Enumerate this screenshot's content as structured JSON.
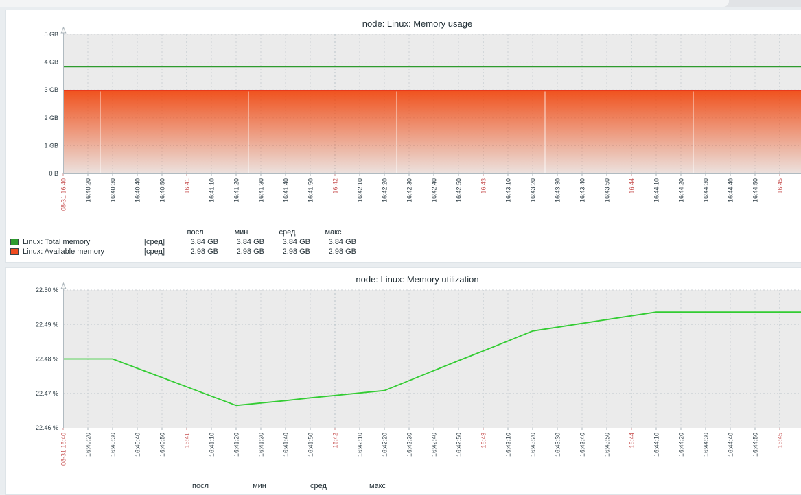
{
  "page": {
    "background": "#e9edf0"
  },
  "legend_stat_headers": [
    "посл",
    "мин",
    "сред",
    "макс"
  ],
  "chart_data": [
    {
      "type": "line+area",
      "title": "node: Linux: Memory usage",
      "ylim": [
        0,
        5
      ],
      "y_unit": "GB",
      "y_ticks": [
        "5 GB",
        "4 GB",
        "3 GB",
        "2 GB",
        "1 GB",
        "0 B"
      ],
      "x_tick_interval_s": 10,
      "grid": true,
      "legend_position": "bottom",
      "x_ticks": [
        {
          "label": "08-31 16:40",
          "red": true
        },
        {
          "label": "16:40:20"
        },
        {
          "label": "16:40:30"
        },
        {
          "label": "16:40:40"
        },
        {
          "label": "16:40:50"
        },
        {
          "label": "16:41",
          "red": true
        },
        {
          "label": "16:41:10"
        },
        {
          "label": "16:41:20"
        },
        {
          "label": "16:41:30"
        },
        {
          "label": "16:41:40"
        },
        {
          "label": "16:41:50"
        },
        {
          "label": "16:42",
          "red": true
        },
        {
          "label": "16:42:10"
        },
        {
          "label": "16:42:20"
        },
        {
          "label": "16:42:30"
        },
        {
          "label": "16:42:40"
        },
        {
          "label": "16:42:50"
        },
        {
          "label": "16:43",
          "red": true
        },
        {
          "label": "16:43:10"
        },
        {
          "label": "16:43:20"
        },
        {
          "label": "16:43:30"
        },
        {
          "label": "16:43:40"
        },
        {
          "label": "16:43:50"
        },
        {
          "label": "16:44",
          "red": true
        },
        {
          "label": "16:44:10"
        },
        {
          "label": "16:44:20"
        },
        {
          "label": "16:44:30"
        },
        {
          "label": "16:44:40"
        },
        {
          "label": "16:44:50"
        },
        {
          "label": "16:45",
          "red": true
        }
      ],
      "series": [
        {
          "name": "Linux: Total memory",
          "type": "line",
          "color": "#2E9B2E",
          "constant_value": 3.84
        },
        {
          "name": "Linux: Available memory",
          "type": "area",
          "color": "#F0470F",
          "line_color": "#E8391C",
          "constant_value": 2.98
        }
      ],
      "legend": {
        "headers": [
          "посл",
          "мин",
          "сред",
          "макс"
        ],
        "rows": [
          {
            "color": "#2E9B2E",
            "label": "Linux: Total memory",
            "func": "[сред]",
            "values": [
              "3.84 GB",
              "3.84 GB",
              "3.84 GB",
              "3.84 GB"
            ]
          },
          {
            "color": "#F04B1F",
            "label": "Linux: Available memory",
            "func": "[сред]",
            "values": [
              "2.98 GB",
              "2.98 GB",
              "2.98 GB",
              "2.98 GB"
            ]
          }
        ]
      }
    },
    {
      "type": "line",
      "title": "node: Linux: Memory utilization",
      "ylim": [
        22.46,
        22.5
      ],
      "y_unit": "%",
      "y_ticks": [
        "22.50 %",
        "22.49 %",
        "22.48 %",
        "22.47 %",
        "22.46 %"
      ],
      "x_tick_interval_s": 10,
      "grid": true,
      "legend_position": "bottom",
      "x_ticks": [
        {
          "label": "08-31 16:40",
          "red": true
        },
        {
          "label": "16:40:20"
        },
        {
          "label": "16:40:30"
        },
        {
          "label": "16:40:40"
        },
        {
          "label": "16:40:50"
        },
        {
          "label": "16:41",
          "red": true
        },
        {
          "label": "16:41:10"
        },
        {
          "label": "16:41:20"
        },
        {
          "label": "16:41:30"
        },
        {
          "label": "16:41:40"
        },
        {
          "label": "16:41:50"
        },
        {
          "label": "16:42",
          "red": true
        },
        {
          "label": "16:42:10"
        },
        {
          "label": "16:42:20"
        },
        {
          "label": "16:42:30"
        },
        {
          "label": "16:42:40"
        },
        {
          "label": "16:42:50"
        },
        {
          "label": "16:43",
          "red": true
        },
        {
          "label": "16:43:10"
        },
        {
          "label": "16:43:20"
        },
        {
          "label": "16:43:30"
        },
        {
          "label": "16:43:40"
        },
        {
          "label": "16:43:50"
        },
        {
          "label": "16:44",
          "red": true
        },
        {
          "label": "16:44:10"
        },
        {
          "label": "16:44:20"
        },
        {
          "label": "16:44:30"
        },
        {
          "label": "16:44:40"
        },
        {
          "label": "16:44:50"
        },
        {
          "label": "16:45",
          "red": true
        }
      ],
      "series": [
        {
          "name": "Linux: Memory utilization",
          "type": "line",
          "color": "#33CC33",
          "values": [
            22.48,
            22.48,
            22.48,
            22.4773,
            22.4746,
            22.4719,
            22.4692,
            22.4665,
            22.4672,
            22.4679,
            22.4687,
            22.4694,
            22.4701,
            22.4708,
            22.4737,
            22.4766,
            22.4795,
            22.4823,
            22.4852,
            22.4881,
            22.4892,
            22.4903,
            22.4914,
            22.4925,
            22.4936,
            22.4936,
            22.4936,
            22.4936,
            22.4936,
            22.4936
          ]
        }
      ],
      "legend": {
        "headers": [
          "посл",
          "мин",
          "сред",
          "макс"
        ],
        "rows": []
      }
    }
  ],
  "colors": {
    "tick_label": "#2c3b43",
    "tick_label_red": "#c75252",
    "axis": "#b0bac0",
    "grid_minor": "#ccd2d6",
    "grid_major": "#b9c3c9",
    "plot_background": "#ebebeb"
  }
}
